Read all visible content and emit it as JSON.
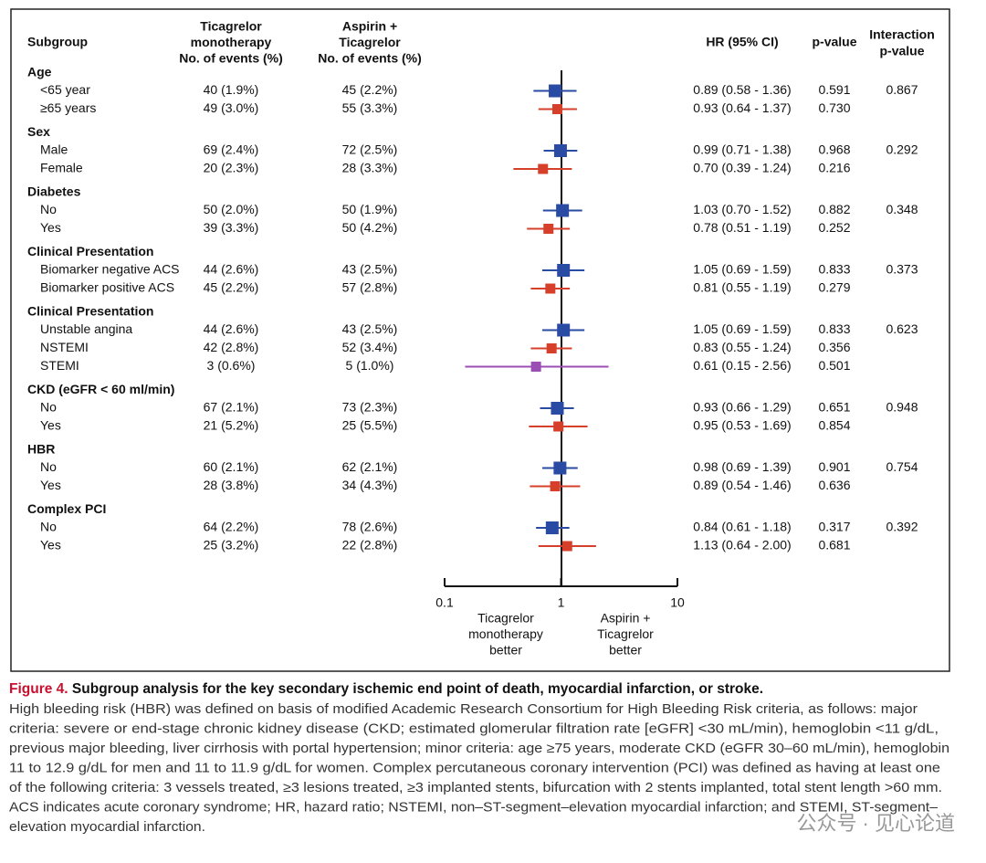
{
  "chart_data": {
    "type": "forest",
    "xscale": "log",
    "xlim": [
      0.1,
      10
    ],
    "xticks": [
      0.1,
      1,
      10
    ],
    "headers": {
      "subgroup": "Subgroup",
      "tica": [
        "Ticagrelor",
        "monotherapy",
        "No. of events (%)"
      ],
      "asp": [
        "Aspirin +",
        "Ticagrelor",
        "No. of events (%)"
      ],
      "hr": "HR (95% CI)",
      "p": "p-value",
      "interaction": [
        "Interaction",
        "p-value"
      ]
    },
    "x_label_left": [
      "Ticagrelor",
      "monotherapy",
      "better"
    ],
    "x_label_right": [
      "Aspirin +",
      "Ticagrelor",
      "better"
    ],
    "groups": [
      {
        "name": "Age",
        "interaction_p": "0.867",
        "rows": [
          {
            "label": "<65 year",
            "tica": "40 (1.9%)",
            "asp": "45 (2.2%)",
            "hr": 0.89,
            "lo": 0.58,
            "hi": 1.36,
            "hr_label": "0.89 (0.58 - 1.36)",
            "p": "0.591",
            "color": "#2a4ba3"
          },
          {
            "label": "≥65 years",
            "tica": "49 (3.0%)",
            "asp": "55 (3.3%)",
            "hr": 0.93,
            "lo": 0.64,
            "hi": 1.37,
            "hr_label": "0.93 (0.64 - 1.37)",
            "p": "0.730",
            "color": "#d6402a"
          }
        ]
      },
      {
        "name": "Sex",
        "interaction_p": "0.292",
        "rows": [
          {
            "label": "Male",
            "tica": "69 (2.4%)",
            "asp": "72 (2.5%)",
            "hr": 0.99,
            "lo": 0.71,
            "hi": 1.38,
            "hr_label": "0.99 (0.71 - 1.38)",
            "p": "0.968",
            "color": "#2a4ba3"
          },
          {
            "label": "Female",
            "tica": "20 (2.3%)",
            "asp": "28 (3.3%)",
            "hr": 0.7,
            "lo": 0.39,
            "hi": 1.24,
            "hr_label": "0.70 (0.39 - 1.24)",
            "p": "0.216",
            "color": "#d6402a"
          }
        ]
      },
      {
        "name": "Diabetes",
        "interaction_p": "0.348",
        "rows": [
          {
            "label": "No",
            "tica": "50 (2.0%)",
            "asp": "50 (1.9%)",
            "hr": 1.03,
            "lo": 0.7,
            "hi": 1.52,
            "hr_label": "1.03 (0.70 - 1.52)",
            "p": "0.882",
            "color": "#2a4ba3"
          },
          {
            "label": "Yes",
            "tica": "39 (3.3%)",
            "asp": "50 (4.2%)",
            "hr": 0.78,
            "lo": 0.51,
            "hi": 1.19,
            "hr_label": "0.78 (0.51 - 1.19)",
            "p": "0.252",
            "color": "#d6402a"
          }
        ]
      },
      {
        "name": "Clinical Presentation",
        "interaction_p": "0.373",
        "rows": [
          {
            "label": "Biomarker negative ACS",
            "tica": "44 (2.6%)",
            "asp": "43 (2.5%)",
            "hr": 1.05,
            "lo": 0.69,
            "hi": 1.59,
            "hr_label": "1.05 (0.69 - 1.59)",
            "p": "0.833",
            "color": "#2a4ba3"
          },
          {
            "label": "Biomarker positive ACS",
            "tica": "45 (2.2%)",
            "asp": "57 (2.8%)",
            "hr": 0.81,
            "lo": 0.55,
            "hi": 1.19,
            "hr_label": "0.81 (0.55 - 1.19)",
            "p": "0.279",
            "color": "#d6402a"
          }
        ]
      },
      {
        "name": "Clinical Presentation",
        "interaction_p": "0.623",
        "rows": [
          {
            "label": "Unstable angina",
            "tica": "44 (2.6%)",
            "asp": "43 (2.5%)",
            "hr": 1.05,
            "lo": 0.69,
            "hi": 1.59,
            "hr_label": "1.05 (0.69 - 1.59)",
            "p": "0.833",
            "color": "#2a4ba3"
          },
          {
            "label": "NSTEMI",
            "tica": "42 (2.8%)",
            "asp": "52 (3.4%)",
            "hr": 0.83,
            "lo": 0.55,
            "hi": 1.24,
            "hr_label": "0.83 (0.55 - 1.24)",
            "p": "0.356",
            "color": "#d6402a"
          },
          {
            "label": "STEMI",
            "tica": "3 (0.6%)",
            "asp": "5 (1.0%)",
            "hr": 0.61,
            "lo": 0.15,
            "hi": 2.56,
            "hr_label": "0.61 (0.15 - 2.56)",
            "p": "0.501",
            "color": "#9b4fb5"
          }
        ]
      },
      {
        "name": "CKD (eGFR < 60 ml/min)",
        "interaction_p": "0.948",
        "rows": [
          {
            "label": "No",
            "tica": "67 (2.1%)",
            "asp": "73 (2.3%)",
            "hr": 0.93,
            "lo": 0.66,
            "hi": 1.29,
            "hr_label": "0.93 (0.66 - 1.29)",
            "p": "0.651",
            "color": "#2a4ba3"
          },
          {
            "label": "Yes",
            "tica": "21 (5.2%)",
            "asp": "25 (5.5%)",
            "hr": 0.95,
            "lo": 0.53,
            "hi": 1.69,
            "hr_label": "0.95 (0.53 - 1.69)",
            "p": "0.854",
            "color": "#d6402a"
          }
        ]
      },
      {
        "name": "HBR",
        "interaction_p": "0.754",
        "rows": [
          {
            "label": "No",
            "tica": "60 (2.1%)",
            "asp": "62 (2.1%)",
            "hr": 0.98,
            "lo": 0.69,
            "hi": 1.39,
            "hr_label": "0.98 (0.69 - 1.39)",
            "p": "0.901",
            "color": "#2a4ba3"
          },
          {
            "label": "Yes",
            "tica": "28 (3.8%)",
            "asp": "34 (4.3%)",
            "hr": 0.89,
            "lo": 0.54,
            "hi": 1.46,
            "hr_label": "0.89 (0.54 - 1.46)",
            "p": "0.636",
            "color": "#d6402a"
          }
        ]
      },
      {
        "name": "Complex PCI",
        "interaction_p": "0.392",
        "rows": [
          {
            "label": "No",
            "tica": "64 (2.2%)",
            "asp": "78 (2.6%)",
            "hr": 0.84,
            "lo": 0.61,
            "hi": 1.18,
            "hr_label": "0.84 (0.61 - 1.18)",
            "p": "0.317",
            "color": "#2a4ba3"
          },
          {
            "label": "Yes",
            "tica": "25 (3.2%)",
            "asp": "22 (2.8%)",
            "hr": 1.13,
            "lo": 0.64,
            "hi": 2.0,
            "hr_label": "1.13 (0.64 - 2.00)",
            "p": "0.681",
            "color": "#d6402a"
          }
        ]
      }
    ],
    "figure_label": "Figure 4.",
    "figure_title": "Subgroup analysis for the key secondary ischemic end point of death, myocardial infarction, or stroke.",
    "caption_lines": [
      "High bleeding risk (HBR) was defined on basis of modified Academic Research Consortium for High Bleeding Risk criteria, as follows: major",
      "criteria: severe or end-stage chronic kidney disease (CKD; estimated glomerular filtration rate [eGFR] <30 mL/min), hemoglobin <11 g/dL,",
      "previous major bleeding, liver cirrhosis with portal hypertension; minor criteria: age ≥75 years, moderate CKD (eGFR 30–60 mL/min), hemoglobin",
      "11 to 12.9 g/dL for men and 11 to 11.9 g/dL for women. Complex percutaneous coronary intervention (PCI) was defined as having at least one",
      "of the following criteria: 3 vessels treated, ≥3 lesions treated, ≥3 implanted stents, bifurcation with 2 stents implanted, total stent length >60 mm.",
      "ACS indicates acute coronary syndrome; HR, hazard ratio; NSTEMI, non–ST-segment–elevation myocardial infarction; and STEMI, ST-segment–",
      "elevation myocardial infarction."
    ],
    "watermark": "公众号 · 见心论道"
  }
}
